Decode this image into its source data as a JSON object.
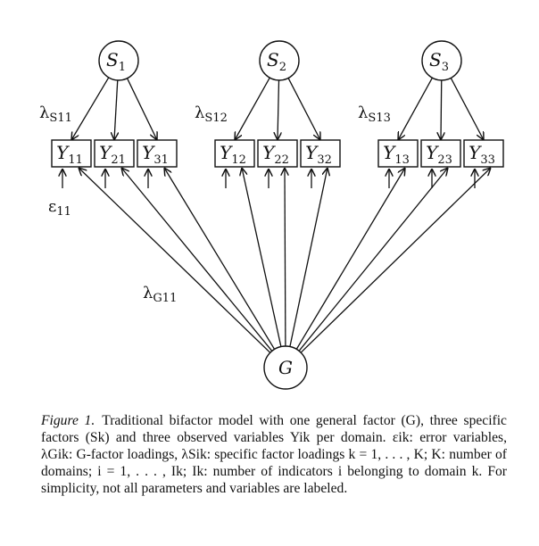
{
  "diagram": {
    "specific_factors": [
      {
        "letter": "S",
        "sub": "1"
      },
      {
        "letter": "S",
        "sub": "2"
      },
      {
        "letter": "S",
        "sub": "3"
      }
    ],
    "indicators": [
      {
        "letter": "Y",
        "sub": "11"
      },
      {
        "letter": "Y",
        "sub": "21"
      },
      {
        "letter": "Y",
        "sub": "31"
      },
      {
        "letter": "Y",
        "sub": "12"
      },
      {
        "letter": "Y",
        "sub": "22"
      },
      {
        "letter": "Y",
        "sub": "32"
      },
      {
        "letter": "Y",
        "sub": "13"
      },
      {
        "letter": "Y",
        "sub": "23"
      },
      {
        "letter": "Y",
        "sub": "33"
      }
    ],
    "general_factor": "G",
    "labels": {
      "lambda_s11": {
        "symbol": "λ",
        "sub": "S11"
      },
      "lambda_s12": {
        "symbol": "λ",
        "sub": "S12"
      },
      "lambda_s13": {
        "symbol": "λ",
        "sub": "S13"
      },
      "epsilon_11": {
        "symbol": "ε",
        "sub": "11"
      },
      "lambda_g11": {
        "symbol": "λ",
        "sub": "G11"
      }
    }
  },
  "caption": {
    "figure_label": "Figure 1.",
    "text": "Traditional bifactor model with one general factor (G), three specific factors (Sk) and three observed variables Yik per domain. εik: error variables, λGik: G-factor loadings, λSik: specific factor loadings k = 1, . . . , K; K: number of domains; i = 1, . . . , Ik; Ik: number of indicators i belonging to domain k. For simplicity, not all parameters and variables are labeled."
  }
}
